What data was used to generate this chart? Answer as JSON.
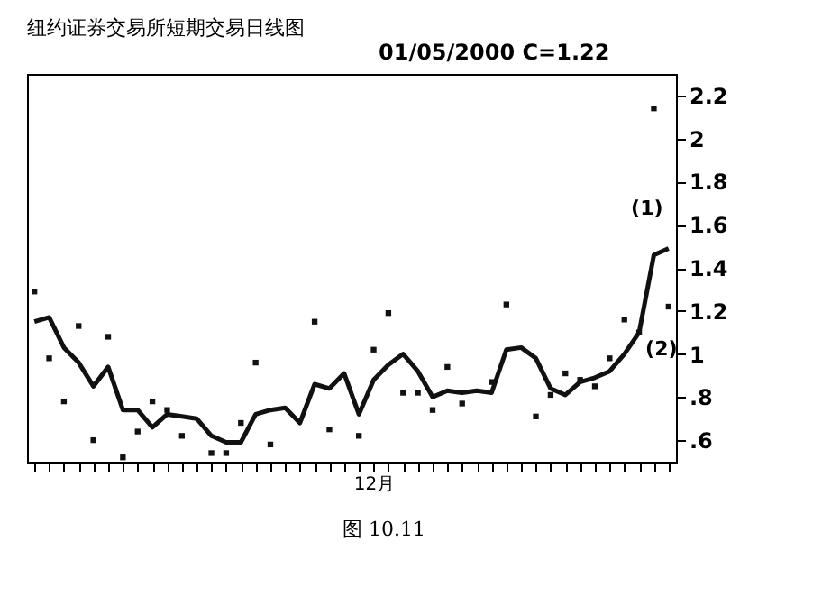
{
  "chart_data": {
    "type": "line",
    "title": "纽约证券交易所短期交易日线图",
    "categories": [
      null,
      null,
      null,
      null,
      null,
      null,
      null,
      null,
      null,
      null,
      null,
      null,
      null,
      null,
      null,
      null,
      null,
      null,
      null,
      null,
      null,
      null,
      null,
      "12月",
      null,
      null,
      null,
      null,
      null,
      null,
      null,
      null,
      null,
      null,
      null,
      null,
      null,
      null,
      null,
      null,
      null,
      null,
      null,
      null
    ],
    "series": [
      {
        "color": "#111111",
        "marker": "none",
        "line_style": "solid",
        "values": [
          1.15,
          1.17,
          1.03,
          0.96,
          0.85,
          0.94,
          0.74,
          0.74,
          0.66,
          0.72,
          0.71,
          0.7,
          0.62,
          0.59,
          0.59,
          0.72,
          0.74,
          0.75,
          0.68,
          0.86,
          0.84,
          0.91,
          0.72,
          0.88,
          0.95,
          1.0,
          0.92,
          0.8,
          0.83,
          0.82,
          0.83,
          0.82,
          1.02,
          1.03,
          0.98,
          0.84,
          0.81,
          0.87,
          0.89,
          0.92,
          1.0,
          1.1,
          1.46,
          1.49
        ]
      },
      {
        "type": "scatter",
        "color": "#111111",
        "marker": "square",
        "values": [
          1.29,
          0.98,
          0.78,
          1.13,
          0.6,
          1.08,
          0.52,
          0.64,
          0.78,
          0.74,
          0.62,
          null,
          0.54,
          0.54,
          0.68,
          0.96,
          0.58,
          null,
          null,
          1.15,
          0.65,
          null,
          0.62,
          1.02,
          1.19,
          0.82,
          0.82,
          0.74,
          0.94,
          0.77,
          null,
          0.87,
          1.23,
          null,
          0.71,
          0.81,
          0.91,
          0.88,
          0.85,
          0.98,
          1.16,
          1.1,
          2.14,
          1.22
        ]
      }
    ],
    "ylim": [
      0.5,
      2.3
    ],
    "yticks": [
      {
        "value": 0.6,
        "label": ".6"
      },
      {
        "value": 0.8,
        "label": ".8"
      },
      1,
      1.2,
      1.4,
      1.6,
      1.8,
      2,
      2.2
    ],
    "grid": false,
    "annotations": [
      "01/05/2000  C=1.22",
      {
        "text": "(1)",
        "y": 1.49
      },
      {
        "text": "(2)",
        "y": 1.22
      },
      "图 10.11"
    ]
  }
}
